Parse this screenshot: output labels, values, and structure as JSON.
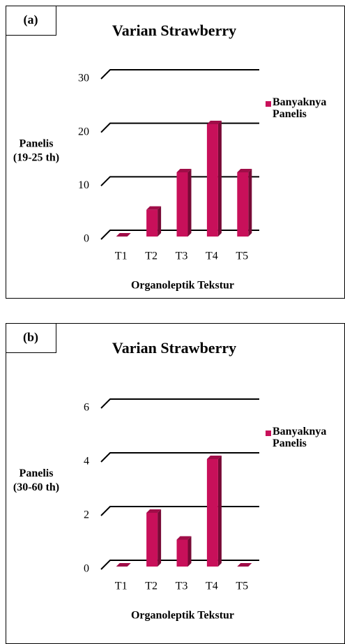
{
  "chart_data": [
    {
      "type": "bar",
      "panel": "(a)",
      "title": "Varian Strawberry",
      "ylabel": [
        "Panelis",
        "(19-25 th)"
      ],
      "xlabel": "Organoleptik Tekstur",
      "categories": [
        "T1",
        "T2",
        "T3",
        "T4",
        "T5"
      ],
      "series": [
        {
          "name": "Banyaknya Panelis",
          "color": "#c8105a",
          "values": [
            0,
            5,
            12,
            21,
            12
          ]
        }
      ],
      "ylim": [
        0,
        30
      ],
      "yticks": [
        0,
        10,
        20,
        30
      ],
      "grid": true,
      "legend": "right"
    },
    {
      "type": "bar",
      "panel": "(b)",
      "title": "Varian Strawberry",
      "ylabel": [
        "Panelis",
        "(30-60 th)"
      ],
      "xlabel": "Organoleptik Tekstur",
      "categories": [
        "T1",
        "T2",
        "T3",
        "T4",
        "T5"
      ],
      "series": [
        {
          "name": "Banyaknya Panelis",
          "color": "#c8105a",
          "values": [
            0,
            2,
            1,
            4,
            0
          ]
        }
      ],
      "ylim": [
        0,
        6
      ],
      "yticks": [
        0,
        2,
        4,
        6
      ],
      "grid": true,
      "legend": "right"
    }
  ]
}
